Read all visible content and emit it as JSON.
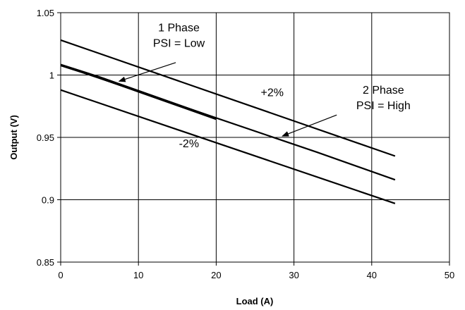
{
  "chart_data": {
    "type": "line",
    "title": "",
    "xlabel": "Load (A)",
    "ylabel": "Output (V)",
    "xlim": [
      0,
      50
    ],
    "ylim": [
      0.85,
      1.05
    ],
    "x_ticks": [
      0,
      10,
      20,
      30,
      40,
      50
    ],
    "y_ticks": [
      0.85,
      0.9,
      0.95,
      1.0,
      1.05
    ],
    "x_tick_labels": [
      "0",
      "10",
      "20",
      "30",
      "40",
      "50"
    ],
    "y_tick_labels": [
      "0.85",
      "0.9",
      "0.95",
      "1",
      "1.05"
    ],
    "grid": true,
    "series": [
      {
        "name": "+2%",
        "x": [
          0,
          43
        ],
        "y": [
          1.028,
          0.935
        ],
        "stroke": 2.2
      },
      {
        "name": "1 Phase PSI = Low",
        "x": [
          0,
          5,
          10,
          15,
          20
        ],
        "y": [
          1.008,
          0.998,
          0.987,
          0.976,
          0.965
        ],
        "stroke": 3.6
      },
      {
        "name": "2 Phase PSI = High",
        "x": [
          0,
          33,
          43
        ],
        "y": [
          1.008,
          0.938,
          0.916
        ],
        "stroke": 2.2
      },
      {
        "name": "-2%",
        "x": [
          0,
          43
        ],
        "y": [
          0.988,
          0.897
        ],
        "stroke": 2.2
      }
    ],
    "annotations": [
      {
        "lines": [
          "1 Phase",
          "PSI = Low"
        ],
        "text_at": [
          15.2,
          1.035
        ],
        "arrow_from": [
          14.8,
          1.01
        ],
        "arrow_to": [
          7.5,
          0.995
        ]
      },
      {
        "lines": [
          "2 Phase",
          "PSI = High"
        ],
        "text_at": [
          41.5,
          0.985
        ],
        "arrow_from": [
          35.5,
          0.968
        ],
        "arrow_to": [
          28.5,
          0.951
        ]
      },
      {
        "lines": [
          "+2%"
        ],
        "text_at": [
          27.2,
          0.983
        ]
      },
      {
        "lines": [
          "-2%"
        ],
        "text_at": [
          16.5,
          0.942
        ]
      }
    ],
    "colors": {
      "line": "#000000",
      "grid": "#000000",
      "background": "#ffffff"
    }
  }
}
